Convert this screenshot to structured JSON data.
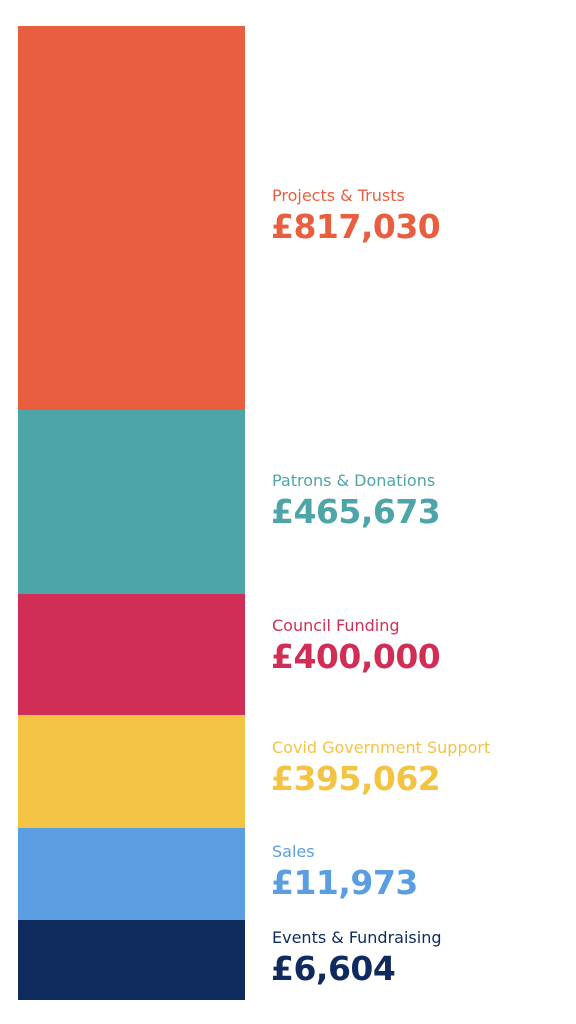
{
  "items": [
    {
      "label": "Projects & Trusts",
      "amount": "£817,030",
      "color": "#e85e3f"
    },
    {
      "label": "Patrons & Donations",
      "amount": "£465,673",
      "color": "#4ea5a8"
    },
    {
      "label": "Council Funding",
      "amount": "£400,000",
      "color": "#d02e56"
    },
    {
      "label": "Covid Government Support",
      "amount": "£395,062",
      "color": "#f3c444"
    },
    {
      "label": "Sales",
      "amount": "£11,973",
      "color": "#5a9ee1"
    },
    {
      "label": "Events & Fundraising",
      "amount": "£6,604",
      "color": "#0f2a5c"
    }
  ]
}
